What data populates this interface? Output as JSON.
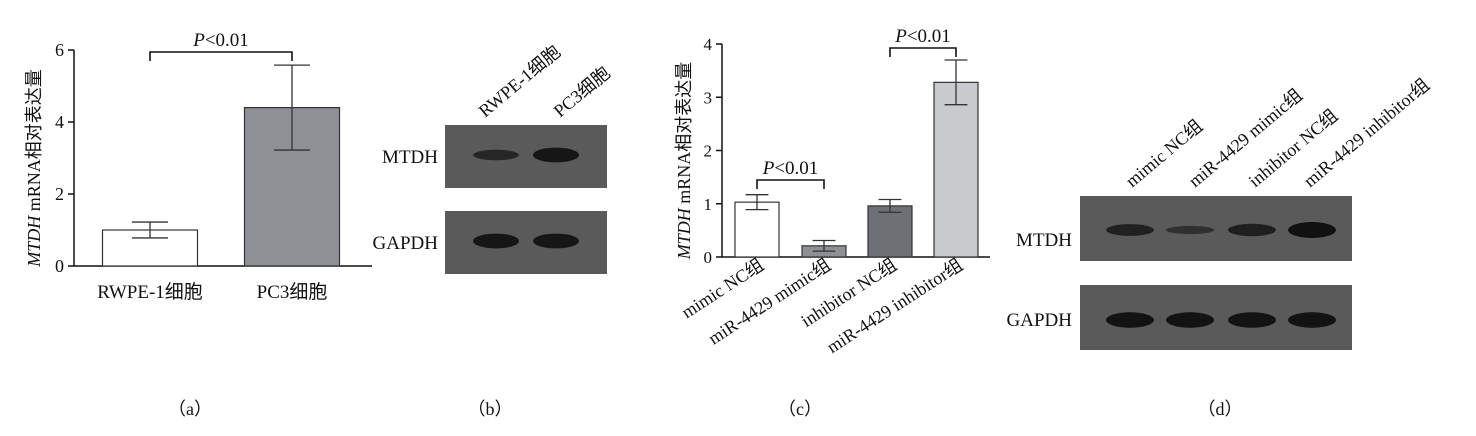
{
  "colors": {
    "rwpe": "#ffffff",
    "pc3": "#8e9096",
    "mimic_nc": "#ffffff",
    "mir_mimic": "#8e9096",
    "inhibitor_nc": "#6f7075",
    "mir_inhibitor": "#c9cacd",
    "blot_bg": "#5a5a5a",
    "band": "#111111"
  },
  "panels": {
    "a": {
      "caption": "（a）"
    },
    "b": {
      "caption": "（b）",
      "lanes": [
        "RWPE-1细胞",
        "PC3细胞"
      ],
      "row_labels": [
        "MTDH",
        "GAPDH"
      ]
    },
    "c": {
      "caption": "（c）"
    },
    "d": {
      "caption": "（d）",
      "lanes": [
        "mimic NC组",
        "miR-4429 mimic组",
        "inhibitor NC组",
        "miR-4429 inhibitor组"
      ],
      "row_labels": [
        "MTDH",
        "GAPDH"
      ]
    }
  },
  "chart_data": [
    {
      "type": "bar",
      "ylabel_italic": "MTDH",
      "ylabel_rest": " mRNA相对表达量",
      "categories": [
        "RWPE-1细胞",
        "PC3细胞"
      ],
      "values": [
        1.0,
        4.4
      ],
      "errors": [
        0.22,
        1.18
      ],
      "ylim": [
        0,
        6
      ],
      "yticks": [
        0,
        2,
        4,
        6
      ],
      "annotations": [
        {
          "from": 0,
          "to": 1,
          "label_italic": "P",
          "label_rest": "<0.01"
        }
      ]
    },
    {
      "type": "bar",
      "ylabel_italic": "MTDH",
      "ylabel_rest": " mRNA相对表达量",
      "categories": [
        "mimic NC组",
        "miR-4429 mimic组",
        "inhibitor NC组",
        "miR-4429 inhibitor组"
      ],
      "values": [
        1.03,
        0.21,
        0.96,
        3.28
      ],
      "errors": [
        0.14,
        0.1,
        0.12,
        0.42
      ],
      "ylim": [
        0,
        4
      ],
      "yticks": [
        0,
        1,
        2,
        3,
        4
      ],
      "annotations": [
        {
          "from": 0,
          "to": 1,
          "label_italic": "P",
          "label_rest": "<0.01"
        },
        {
          "from": 2,
          "to": 3,
          "label_italic": "P",
          "label_rest": "<0.01"
        }
      ]
    }
  ],
  "blots": {
    "b": {
      "mtdh": [
        0.55,
        0.9
      ],
      "gapdh": [
        0.9,
        0.9
      ]
    },
    "d": {
      "mtdh": [
        0.65,
        0.35,
        0.7,
        1.0
      ],
      "gapdh": [
        0.95,
        0.95,
        0.95,
        0.95
      ]
    }
  }
}
